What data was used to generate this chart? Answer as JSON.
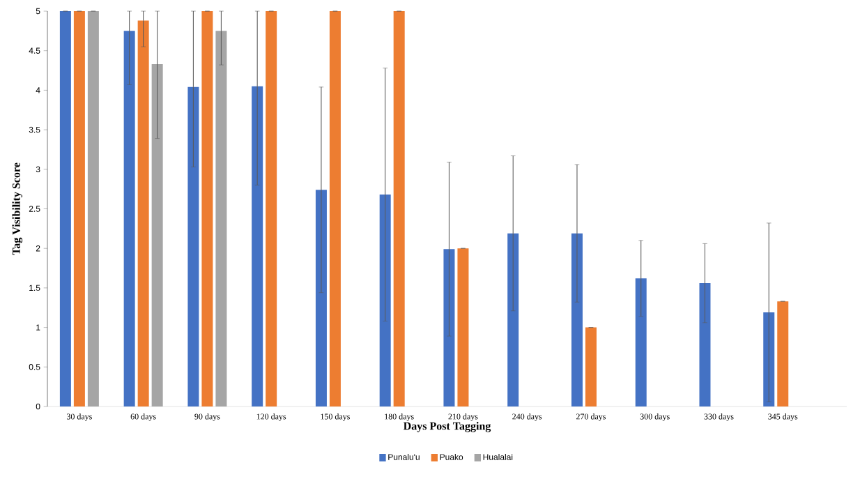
{
  "chart_data": {
    "type": "bar",
    "xlabel": "Days Post Tagging",
    "ylabel": "Tag Visibility Score",
    "categories": [
      "30 days",
      "60 days",
      "90 days",
      "120 days",
      "150 days",
      "180 days",
      "210 days",
      "240 days",
      "270 days",
      "300 days",
      "330 days",
      "345 days"
    ],
    "series": [
      {
        "name": "Punalu'u",
        "color": "#4472c4",
        "values": [
          5,
          4.75,
          4.04,
          4.05,
          2.74,
          2.68,
          1.99,
          2.19,
          2.19,
          1.62,
          1.56,
          1.19
        ],
        "errors": [
          0,
          [
            4.07,
            5
          ],
          [
            3.03,
            5
          ],
          [
            2.8,
            5
          ],
          1.3,
          1.6,
          1.1,
          0.98,
          0.87,
          0.48,
          0.5,
          1.13
        ]
      },
      {
        "name": "Puako",
        "color": "#ed7d31",
        "values": [
          5,
          4.88,
          5,
          5,
          5,
          5,
          2,
          null,
          1,
          null,
          null,
          1.33
        ],
        "errors": [
          0,
          [
            4.55,
            5
          ],
          0,
          0,
          0,
          0,
          0,
          null,
          0,
          null,
          null,
          0
        ]
      },
      {
        "name": "Hualalai",
        "color": "#a5a5a5",
        "values": [
          5,
          4.33,
          4.75,
          null,
          null,
          null,
          null,
          null,
          null,
          null,
          null,
          null
        ],
        "errors": [
          0,
          [
            3.39,
            5
          ],
          [
            4.32,
            5
          ],
          null,
          null,
          null,
          null,
          null,
          null,
          null,
          null,
          null
        ]
      }
    ],
    "ylim": [
      0,
      5
    ],
    "yticks": [
      0,
      0.5,
      1,
      1.5,
      2,
      2.5,
      3,
      3.5,
      4,
      4.5,
      5
    ],
    "legend": "bottom"
  }
}
